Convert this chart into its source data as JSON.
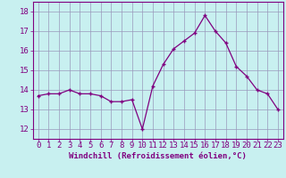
{
  "x": [
    0,
    1,
    2,
    3,
    4,
    5,
    6,
    7,
    8,
    9,
    10,
    11,
    12,
    13,
    14,
    15,
    16,
    17,
    18,
    19,
    20,
    21,
    22,
    23
  ],
  "y": [
    13.7,
    13.8,
    13.8,
    14.0,
    13.8,
    13.8,
    13.7,
    13.4,
    13.4,
    13.5,
    12.0,
    14.2,
    15.3,
    16.1,
    16.5,
    16.9,
    17.8,
    17.0,
    16.4,
    15.2,
    14.7,
    14.0,
    13.8,
    13.0
  ],
  "ylim": [
    11.5,
    18.5
  ],
  "yticks": [
    12,
    13,
    14,
    15,
    16,
    17,
    18
  ],
  "line_color": "#800080",
  "marker": "+",
  "bg_color": "#c8f0f0",
  "grid_color": "#9999bb",
  "xlabel": "Windchill (Refroidissement éolien,°C)",
  "xlabel_fontsize": 6.5,
  "tick_fontsize": 6.5,
  "fig_width": 3.2,
  "fig_height": 2.0,
  "dpi": 100
}
